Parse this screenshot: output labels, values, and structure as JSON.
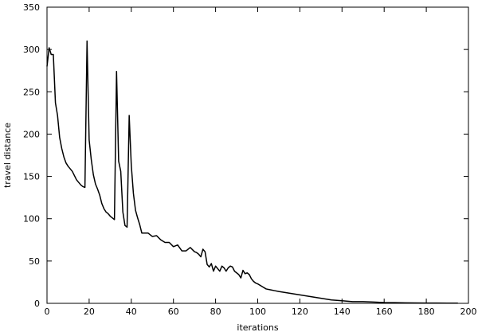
{
  "chart_data": {
    "type": "line",
    "title": "",
    "xlabel": "iterations",
    "ylabel": "travel distance",
    "xlim": [
      0,
      200
    ],
    "ylim": [
      0,
      350
    ],
    "xticks": [
      0,
      20,
      40,
      60,
      80,
      100,
      120,
      140,
      160,
      180,
      200
    ],
    "yticks": [
      0,
      50,
      100,
      150,
      200,
      250,
      300,
      350
    ],
    "grid": false,
    "legend": "none",
    "line_color": "#000000",
    "series": [
      {
        "x": [
          0,
          1,
          2,
          3,
          4,
          5,
          6,
          7,
          8,
          9,
          10,
          12,
          14,
          16,
          17,
          18,
          19,
          20,
          21,
          22,
          23,
          24,
          25,
          26,
          27,
          28,
          29,
          30,
          32,
          33,
          34,
          35,
          36,
          37,
          38,
          39,
          40,
          41,
          42,
          43,
          44,
          45,
          46,
          48,
          50,
          52,
          54,
          56,
          58,
          60,
          62,
          64,
          66,
          68,
          70,
          71,
          72,
          73,
          74,
          75,
          76,
          77,
          78,
          79,
          80,
          81,
          82,
          83,
          84,
          85,
          86,
          87,
          88,
          89,
          90,
          91,
          92,
          93,
          94,
          95,
          96,
          97,
          98,
          99,
          100,
          102,
          104,
          106,
          108,
          110,
          115,
          120,
          125,
          130,
          135,
          140,
          145,
          150,
          155,
          160,
          165,
          170,
          175,
          180,
          185,
          190,
          195
        ],
        "y": [
          280,
          302,
          294,
          294,
          237,
          222,
          196,
          183,
          173,
          166,
          162,
          156,
          146,
          140,
          138,
          137,
          310,
          193,
          170,
          152,
          141,
          135,
          128,
          118,
          112,
          108,
          106,
          103,
          99,
          274,
          168,
          156,
          108,
          92,
          90,
          222,
          163,
          130,
          110,
          101,
          93,
          83,
          83,
          83,
          79,
          80,
          75,
          72,
          72,
          67,
          69,
          62,
          62,
          66,
          61,
          60,
          58,
          55,
          64,
          61,
          46,
          43,
          47,
          38,
          44,
          41,
          38,
          44,
          42,
          38,
          42,
          44,
          43,
          38,
          36,
          34,
          30,
          39,
          35,
          36,
          34,
          29,
          26,
          24,
          23,
          20,
          17,
          16,
          15,
          14,
          12,
          10,
          8,
          6,
          4,
          3,
          2,
          2,
          1.5,
          1,
          0.8,
          0.6,
          0.5,
          0.4,
          0.3,
          0.2,
          0.2
        ]
      }
    ]
  }
}
